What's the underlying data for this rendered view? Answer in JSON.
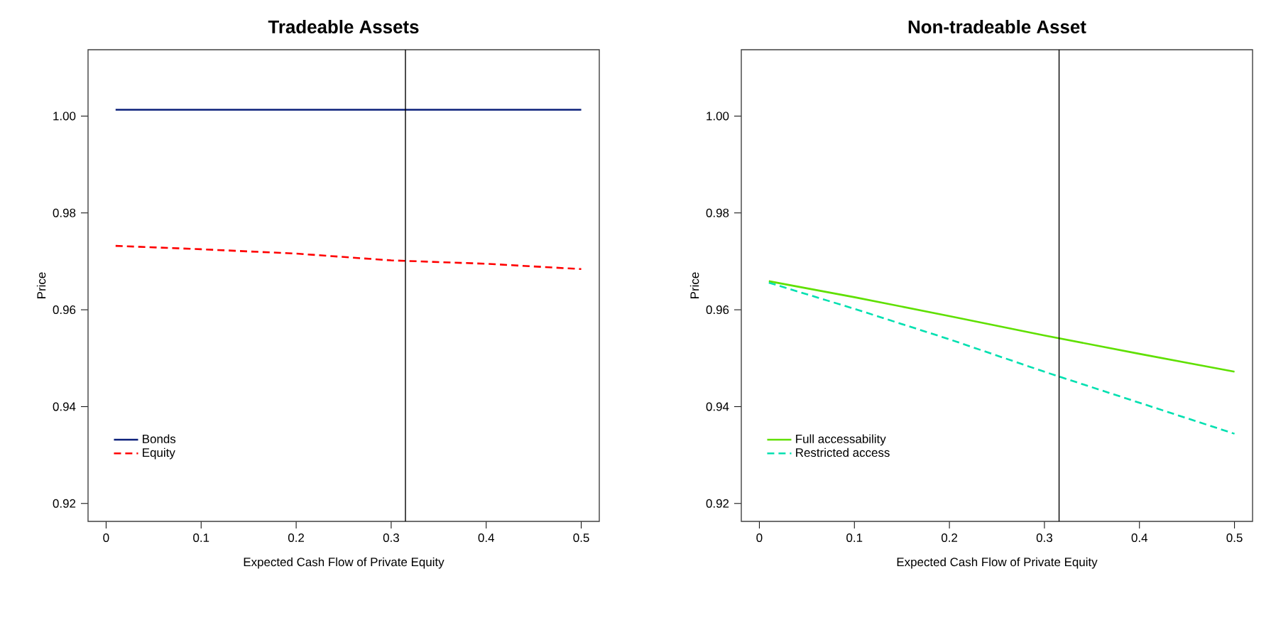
{
  "chart_data": [
    {
      "type": "line",
      "title": "Tradeable Assets",
      "xlabel": "Expected Cash Flow of Private Equity",
      "ylabel": "Price",
      "xlim": [
        -0.019,
        0.519
      ],
      "ylim": [
        0.9163,
        1.0137
      ],
      "xticks": [
        0,
        0.1,
        0.2,
        0.3,
        0.4,
        0.5
      ],
      "yticks": [
        0.92,
        0.94,
        0.96,
        0.98,
        {
          "value": 1.0,
          "label": "1.00"
        }
      ],
      "legend": "bottom left",
      "marker": "none",
      "grid": false,
      "series": [
        {
          "name": "Bonds",
          "color": "#0a1f7a",
          "line_style": "solid",
          "x": [
            0.01,
            0.1,
            0.2,
            0.3,
            0.4,
            0.5
          ],
          "values": [
            1.0013,
            1.0013,
            1.0013,
            1.0013,
            1.0013,
            1.0013
          ]
        },
        {
          "name": "Equity",
          "color": "#ff0000",
          "line_style": "dashed",
          "x": [
            0.01,
            0.1,
            0.2,
            0.3,
            0.4,
            0.5
          ],
          "values": [
            0.9732,
            0.9725,
            0.9716,
            0.9702,
            0.9695,
            0.9684
          ]
        }
      ],
      "ref_lines": [
        {
          "axis": "x",
          "value": 0.315,
          "color": "#000000"
        }
      ]
    },
    {
      "type": "line",
      "title": "Non-tradeable Asset",
      "xlabel": "Expected Cash Flow of Private Equity",
      "ylabel": "Price",
      "xlim": [
        -0.019,
        0.519
      ],
      "ylim": [
        0.9163,
        1.0137
      ],
      "xticks": [
        0,
        0.1,
        0.2,
        0.3,
        0.4,
        0.5
      ],
      "yticks": [
        0.92,
        0.94,
        0.96,
        0.98,
        {
          "value": 1.0,
          "label": "1.00"
        }
      ],
      "legend": "bottom left",
      "marker": "none",
      "grid": false,
      "series": [
        {
          "name": "Full accessability",
          "color": "#5fe000",
          "line_style": "solid",
          "x": [
            0.01,
            0.1,
            0.2,
            0.3,
            0.4,
            0.5
          ],
          "values": [
            0.9659,
            0.9626,
            0.9587,
            0.9547,
            0.9509,
            0.9472
          ]
        },
        {
          "name": "Restricted access",
          "color": "#00e0b0",
          "line_style": "dashed",
          "x": [
            0.01,
            0.1,
            0.2,
            0.3,
            0.4,
            0.5
          ],
          "values": [
            0.9656,
            0.9602,
            0.9539,
            0.9472,
            0.9408,
            0.9344
          ]
        }
      ],
      "ref_lines": [
        {
          "axis": "x",
          "value": 0.3154,
          "color": "#000000"
        }
      ]
    }
  ]
}
